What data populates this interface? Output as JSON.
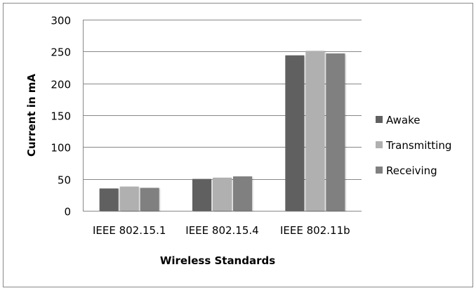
{
  "chart_data": {
    "type": "bar",
    "categories": [
      "IEEE 802.15.1",
      "IEEE 802.15.4",
      "IEEE 802.11b"
    ],
    "series": [
      {
        "name": "Awake",
        "values": [
          35,
          50,
          244
        ],
        "color": "#606060"
      },
      {
        "name": "Transmitting",
        "values": [
          38,
          52,
          251
        ],
        "color": "#b0b0b0"
      },
      {
        "name": "Receiving",
        "values": [
          36,
          54,
          247
        ],
        "color": "#808080"
      }
    ],
    "xlabel": "Wireless Standards",
    "ylabel": "Current in mA",
    "ylim": [
      0,
      300
    ],
    "yticks": [
      0,
      50,
      100,
      150,
      200,
      250,
      300
    ],
    "grid": true,
    "legend": "right"
  }
}
